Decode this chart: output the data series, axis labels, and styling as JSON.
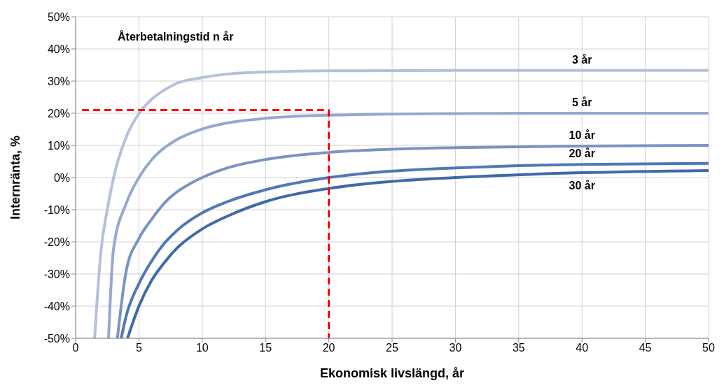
{
  "chart_data": {
    "type": "line",
    "title": "Återbetalningstid n år",
    "xlabel": "Ekonomisk livslängd, år",
    "ylabel": "Internränta, %",
    "xlim": [
      0,
      50
    ],
    "xticks": [
      0,
      5,
      10,
      15,
      20,
      25,
      30,
      35,
      40,
      45,
      50
    ],
    "ylim": [
      -50,
      50
    ],
    "yticks": [
      {
        "value": -50,
        "label": "-50%"
      },
      {
        "value": -40,
        "label": "-40%"
      },
      {
        "value": -30,
        "label": "-30%"
      },
      {
        "value": -20,
        "label": "-20%"
      },
      {
        "value": -10,
        "label": "-10%"
      },
      {
        "value": 0,
        "label": "0%"
      },
      {
        "value": 10,
        "label": "10%"
      },
      {
        "value": 20,
        "label": "20%"
      },
      {
        "value": 30,
        "label": "30%"
      },
      {
        "value": 40,
        "label": "40%"
      },
      {
        "value": 50,
        "label": "50%"
      }
    ],
    "grid": true,
    "marker": "none",
    "line_style": "solid",
    "series": [
      {
        "name": "3 år",
        "color": "#b4c0dc",
        "x": [
          1.5,
          2,
          2.5,
          3,
          4,
          5,
          6,
          7,
          8,
          10,
          12,
          15,
          20,
          30,
          40,
          50
        ],
        "values": [
          -50,
          -23,
          -10,
          0,
          12.6,
          19.9,
          24.3,
          27.2,
          29.3,
          31.1,
          32.2,
          32.8,
          33.2,
          33.3,
          33.3,
          33.3
        ]
      },
      {
        "name": "5 år",
        "color": "#95a8d0",
        "x": [
          2.6,
          3,
          4,
          5,
          6,
          7,
          8,
          10,
          12,
          15,
          20,
          30,
          40,
          50
        ],
        "values": [
          -50,
          -22,
          -8,
          0,
          5.5,
          9.2,
          11.8,
          15.1,
          17,
          18.4,
          19.4,
          19.9,
          20,
          20
        ]
      },
      {
        "name": "10 år",
        "color": "#7b93c3",
        "x": [
          3.3,
          4,
          5,
          6,
          7,
          8,
          9,
          10,
          12,
          15,
          20,
          25,
          30,
          40,
          50
        ],
        "values": [
          -50,
          -29,
          -19,
          -13,
          -8,
          -4.5,
          -2,
          0,
          3,
          5.6,
          7.8,
          8.8,
          9.3,
          9.8,
          10
        ]
      },
      {
        "name": "20 år",
        "color": "#4f78b5",
        "x": [
          3.6,
          4,
          5,
          6,
          7,
          8,
          10,
          12,
          15,
          20,
          25,
          30,
          35,
          40,
          50
        ],
        "values": [
          -50,
          -43,
          -33,
          -26,
          -20.5,
          -16.5,
          -11,
          -7.5,
          -3.8,
          0,
          2,
          3,
          3.7,
          4.1,
          4.4
        ]
      },
      {
        "name": "30 år",
        "color": "#3f6aa8",
        "x": [
          4.1,
          5,
          6,
          7,
          8,
          10,
          12,
          15,
          20,
          25,
          30,
          40,
          50
        ],
        "values": [
          -50,
          -40,
          -32,
          -26.5,
          -22,
          -16,
          -12,
          -7.5,
          -3.4,
          -1.2,
          0,
          1.5,
          2.2
        ]
      },
      {
        "color": "#ff0000",
        "line_style": "dashed",
        "x": [
          0.5,
          20,
          20
        ],
        "values": [
          21,
          21,
          -50
        ]
      }
    ]
  }
}
